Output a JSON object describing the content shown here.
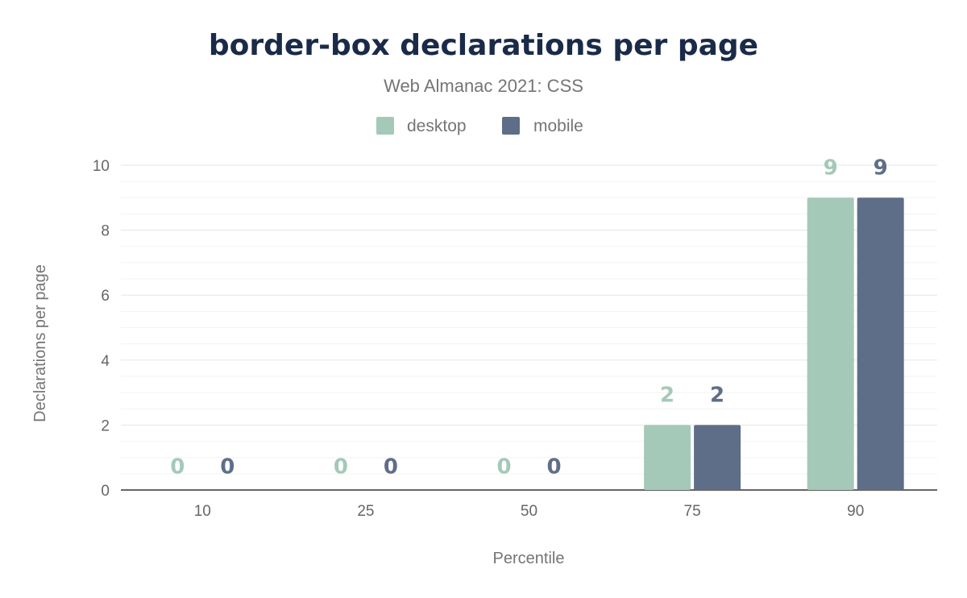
{
  "chart_data": {
    "type": "bar",
    "title": "border-box declarations per page",
    "subtitle": "Web Almanac 2021: CSS",
    "xlabel": "Percentile",
    "ylabel": "Declarations per page",
    "categories": [
      "10",
      "25",
      "50",
      "75",
      "90"
    ],
    "series": [
      {
        "name": "desktop",
        "color": "#a4c9b9",
        "values": [
          0,
          0,
          0,
          2,
          9
        ]
      },
      {
        "name": "mobile",
        "color": "#5f6e88",
        "values": [
          0,
          0,
          0,
          2,
          9
        ]
      }
    ],
    "ylim": [
      0,
      10
    ],
    "yticks": [
      0,
      2,
      4,
      6,
      8,
      10
    ],
    "grid": true,
    "legend": "top-center"
  }
}
